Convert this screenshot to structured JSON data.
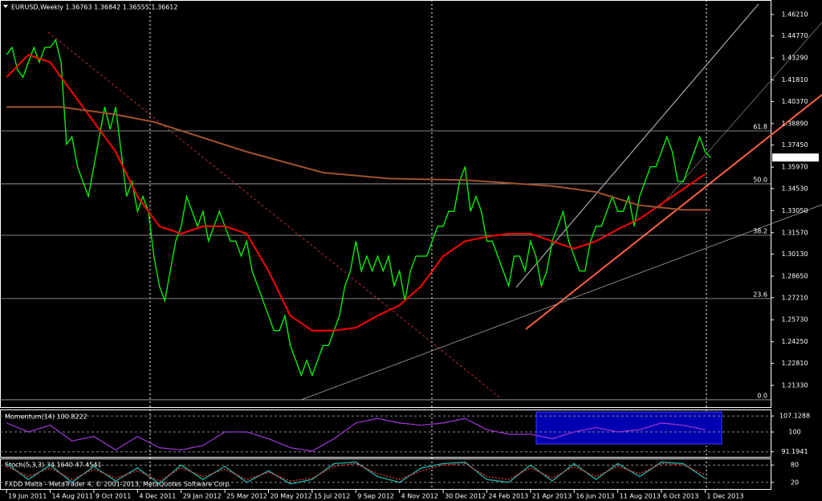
{
  "header": "EURUSD,Weekly  1.36763 1.36842 1.36555 1.36612",
  "footer": "FXDD Malta - MetaTrader 4, © 2001-2013, MetaQuotes Software Corp.",
  "chart_data": [
    {
      "type": "line",
      "xlim": [
        -1.2,
        140
      ],
      "ylim": [
        1.1998,
        1.4691
      ],
      "yticks": [
        {
          "value": 1.4621,
          "label": "1.46210"
        },
        {
          "value": 1.4477,
          "label": "1.44770"
        },
        {
          "value": 1.4329,
          "label": "1.43290"
        },
        {
          "value": 1.4181,
          "label": "1.41810"
        },
        {
          "value": 1.4037,
          "label": "1.40370"
        },
        {
          "value": 1.3889,
          "label": "1.38890"
        },
        {
          "value": 1.3745,
          "label": "1.37450"
        },
        {
          "value": 1.3597,
          "label": "1.35970"
        },
        {
          "value": 1.3453,
          "label": "1.34530"
        },
        {
          "value": 1.3305,
          "label": "1.33050"
        },
        {
          "value": 1.3157,
          "label": "1.31570"
        },
        {
          "value": 1.3013,
          "label": "1.30130"
        },
        {
          "value": 1.2865,
          "label": "1.28650"
        },
        {
          "value": 1.2721,
          "label": "1.27210"
        },
        {
          "value": 1.2573,
          "label": "1.25730"
        },
        {
          "value": 1.2425,
          "label": "1.24250"
        },
        {
          "value": 1.2281,
          "label": "1.22810"
        },
        {
          "value": 1.2133,
          "label": "1.21330"
        }
      ],
      "xticks": [
        {
          "value": 0,
          "label": "19 Jun 2011"
        },
        {
          "value": 8,
          "label": "14 Aug 2011"
        },
        {
          "value": 16,
          "label": "9 Oct 2011"
        },
        {
          "value": 24,
          "label": "4 Dec 2011"
        },
        {
          "value": 32,
          "label": "29 Jan 2012"
        },
        {
          "value": 40,
          "label": "25 Mar 2012"
        },
        {
          "value": 48,
          "label": "20 May 2012"
        },
        {
          "value": 56,
          "label": "15 Jul 2012"
        },
        {
          "value": 64,
          "label": "9 Sep 2012"
        },
        {
          "value": 72,
          "label": "4 Nov 2012"
        },
        {
          "value": 80,
          "label": "30 Dec 2012"
        },
        {
          "value": 88,
          "label": "24 Feb 2013"
        },
        {
          "value": 96,
          "label": "21 Apr 2013"
        },
        {
          "value": 104,
          "label": "16 Jun 2013"
        },
        {
          "value": 112,
          "label": "11 Aug 2013"
        },
        {
          "value": 120,
          "label": "6 Oct 2013"
        },
        {
          "value": 128,
          "label": "1 Dec 2013"
        }
      ],
      "current_price": {
        "value": 1.36612,
        "label": "1.36612"
      },
      "fib_levels": [
        {
          "value": 1.384,
          "label": "61.8"
        },
        {
          "value": 1.3485,
          "label": "50.0"
        },
        {
          "value": 1.314,
          "label": "38.2"
        },
        {
          "value": 1.2715,
          "label": "23.6"
        },
        {
          "value": 1.2036,
          "label": "0.0"
        }
      ],
      "series": [
        {
          "color": "#00ff00",
          "values": [
            1.435,
            1.44,
            1.425,
            1.42,
            1.43,
            1.44,
            1.43,
            1.44,
            1.44,
            1.445,
            1.43,
            1.375,
            1.38,
            1.36,
            1.35,
            1.34,
            1.36,
            1.38,
            1.4,
            1.385,
            1.4,
            1.37,
            1.34,
            1.35,
            1.33,
            1.34,
            1.33,
            1.3,
            1.28,
            1.27,
            1.29,
            1.31,
            1.32,
            1.34,
            1.33,
            1.32,
            1.33,
            1.31,
            1.32,
            1.33,
            1.32,
            1.31,
            1.31,
            1.3,
            1.31,
            1.29,
            1.28,
            1.27,
            1.26,
            1.25,
            1.25,
            1.26,
            1.24,
            1.23,
            1.22,
            1.23,
            1.22,
            1.23,
            1.24,
            1.24,
            1.25,
            1.26,
            1.28,
            1.29,
            1.31,
            1.29,
            1.3,
            1.29,
            1.3,
            1.29,
            1.3,
            1.28,
            1.29,
            1.27,
            1.29,
            1.3,
            1.3,
            1.3,
            1.31,
            1.32,
            1.32,
            1.33,
            1.33,
            1.35,
            1.36,
            1.33,
            1.34,
            1.33,
            1.31,
            1.31,
            1.3,
            1.29,
            1.28,
            1.3,
            1.3,
            1.29,
            1.31,
            1.3,
            1.28,
            1.29,
            1.31,
            1.32,
            1.33,
            1.31,
            1.3,
            1.29,
            1.29,
            1.31,
            1.32,
            1.32,
            1.33,
            1.34,
            1.33,
            1.33,
            1.34,
            1.32,
            1.34,
            1.35,
            1.36,
            1.36,
            1.37,
            1.38,
            1.37,
            1.35,
            1.35,
            1.36,
            1.37,
            1.38,
            1.37,
            1.366
          ]
        },
        {
          "color": "#ff0000",
          "x": [
            0,
            4,
            8,
            12,
            16,
            20,
            24,
            28,
            32,
            36,
            40,
            44,
            48,
            52,
            56,
            60,
            64,
            68,
            72,
            76,
            80,
            84,
            88,
            92,
            96,
            100,
            104,
            108,
            112,
            116,
            120,
            124,
            128
          ],
          "values": [
            1.42,
            1.435,
            1.43,
            1.41,
            1.39,
            1.37,
            1.34,
            1.32,
            1.315,
            1.32,
            1.32,
            1.315,
            1.29,
            1.26,
            1.25,
            1.25,
            1.252,
            1.26,
            1.267,
            1.28,
            1.3,
            1.31,
            1.313,
            1.315,
            1.315,
            1.31,
            1.305,
            1.31,
            1.318,
            1.325,
            1.335,
            1.345,
            1.355
          ]
        },
        {
          "color": "#a0522d",
          "x": [
            0,
            10,
            20,
            27,
            44,
            58,
            70,
            84,
            100,
            108,
            116,
            124,
            129
          ],
          "values": [
            1.4,
            1.4,
            1.395,
            1.39,
            1.37,
            1.356,
            1.352,
            1.351,
            1.347,
            1.343,
            1.334,
            1.331,
            1.331
          ]
        }
      ]
    },
    {
      "type": "line",
      "title": "Momentum(14) 100.8222",
      "ylim": [
        89.3,
        109.3
      ],
      "yticks": [
        107.1288,
        100,
        91.1941
      ],
      "series": [
        {
          "color": "#9932cc",
          "x": [
            0,
            4,
            8,
            12,
            16,
            20,
            24,
            28,
            32,
            36,
            40,
            44,
            48,
            52,
            56,
            60,
            64,
            68,
            72,
            76,
            80,
            84,
            88,
            92,
            96,
            100,
            104,
            108,
            112,
            116,
            120,
            124,
            128
          ],
          "values": [
            104,
            100,
            103,
            96,
            98,
            92,
            98,
            93,
            92,
            94,
            100,
            100,
            97,
            93,
            91.5,
            97,
            104,
            106,
            104,
            103,
            104,
            106,
            101,
            99,
            99,
            97,
            100,
            102,
            100,
            101,
            104,
            103,
            101
          ]
        }
      ]
    },
    {
      "type": "line",
      "title": "Stoch(5,3,3) 34.1640 47.4541",
      "ylim": [
        0,
        100
      ],
      "yticks": [
        80,
        20
      ],
      "series": [
        {
          "color": "#20b2aa",
          "x": [
            0,
            4,
            8,
            12,
            16,
            20,
            24,
            28,
            32,
            36,
            40,
            44,
            48,
            52,
            56,
            60,
            64,
            68,
            72,
            76,
            80,
            84,
            88,
            92,
            96,
            100,
            104,
            108,
            112,
            116,
            120,
            124,
            128
          ],
          "values": [
            85,
            30,
            80,
            20,
            75,
            25,
            70,
            15,
            80,
            30,
            75,
            20,
            60,
            15,
            30,
            85,
            90,
            40,
            20,
            70,
            85,
            90,
            30,
            20,
            80,
            25,
            85,
            30,
            85,
            40,
            90,
            85,
            34
          ]
        },
        {
          "color": "#ff3030",
          "x": [
            0,
            4,
            8,
            12,
            16,
            20,
            24,
            28,
            32,
            36,
            40,
            44,
            48,
            52,
            56,
            60,
            64,
            68,
            72,
            76,
            80,
            84,
            88,
            92,
            96,
            100,
            104,
            108,
            112,
            116,
            120,
            124,
            128
          ],
          "values": [
            75,
            40,
            70,
            30,
            65,
            35,
            60,
            25,
            70,
            40,
            65,
            30,
            55,
            25,
            35,
            75,
            85,
            50,
            30,
            60,
            80,
            85,
            40,
            30,
            70,
            35,
            75,
            40,
            75,
            50,
            85,
            80,
            47
          ]
        }
      ]
    }
  ]
}
